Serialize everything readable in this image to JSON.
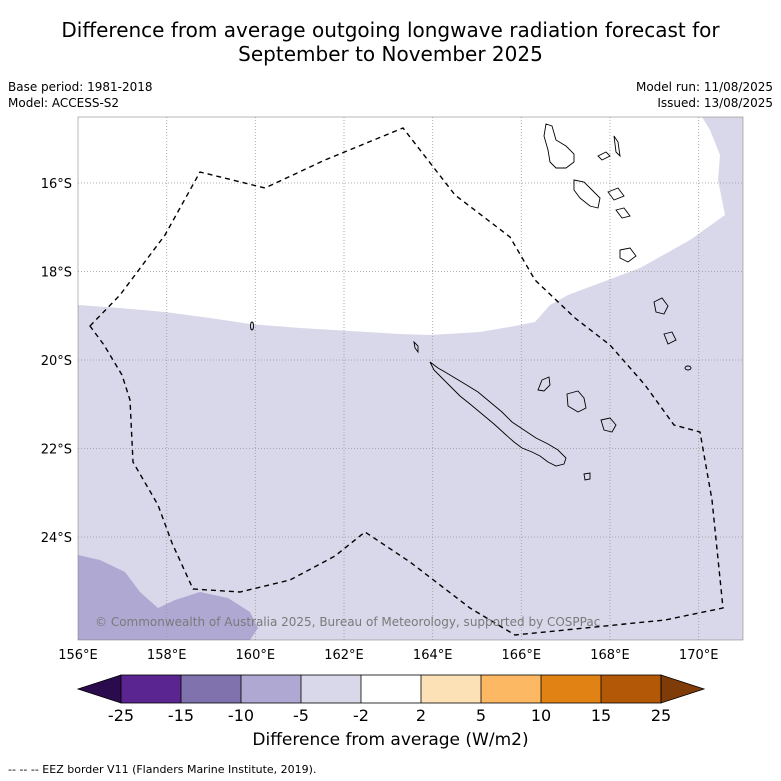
{
  "title_line1": "Difference from average outgoing longwave radiation forecast for",
  "title_line2": "September to November 2025",
  "base_period": "Base period: 1981-2018",
  "model": "Model: ACCESS-S2",
  "model_run": "Model run: 11/08/2025",
  "issued": "Issued: 13/08/2025",
  "copyright": "© Commonwealth of Australia 2025, Bureau of Meteorology, supported by COSPPac",
  "lon_ticks": [
    "156°E",
    "158°E",
    "160°E",
    "162°E",
    "164°E",
    "166°E",
    "168°E",
    "170°E"
  ],
  "lat_ticks": [
    "16°S",
    "18°S",
    "20°S",
    "22°S",
    "24°S"
  ],
  "colorbar": {
    "label": "Difference from average (W/m2)",
    "tick_labels": [
      "-25",
      "-15",
      "-10",
      "-5",
      "-2",
      "2",
      "5",
      "10",
      "15",
      "25"
    ],
    "colors": {
      "extend_low": "#2a0c4e",
      "bins": [
        "#5a2590",
        "#7f72ad",
        "#afa8d3",
        "#d8d8ea",
        "#ffffff",
        "#fde1b6",
        "#fdb863",
        "#e08214",
        "#b35806"
      ],
      "extend_high": "#7f3b08"
    }
  },
  "footer": "-- -- -- EEZ border V11 (Flanders Marine Institute, 2019)."
}
